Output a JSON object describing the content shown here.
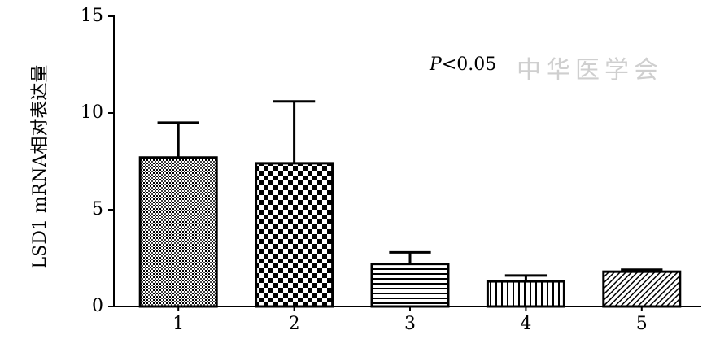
{
  "chart_data": {
    "type": "bar",
    "ylabel": "LSD1 mRNA相对表达量",
    "annotation": {
      "italic": "P",
      "rest": "<0.05"
    },
    "watermark": "中华医学会",
    "categories": [
      "1",
      "2",
      "3",
      "4",
      "5"
    ],
    "values": [
      7.7,
      7.4,
      2.2,
      1.3,
      1.8
    ],
    "errors": [
      1.8,
      3.2,
      0.6,
      0.3,
      0.1
    ],
    "color": "#000000",
    "ylim": [
      0,
      15
    ],
    "yticks": [
      0,
      5,
      10,
      15
    ],
    "grid": false
  }
}
